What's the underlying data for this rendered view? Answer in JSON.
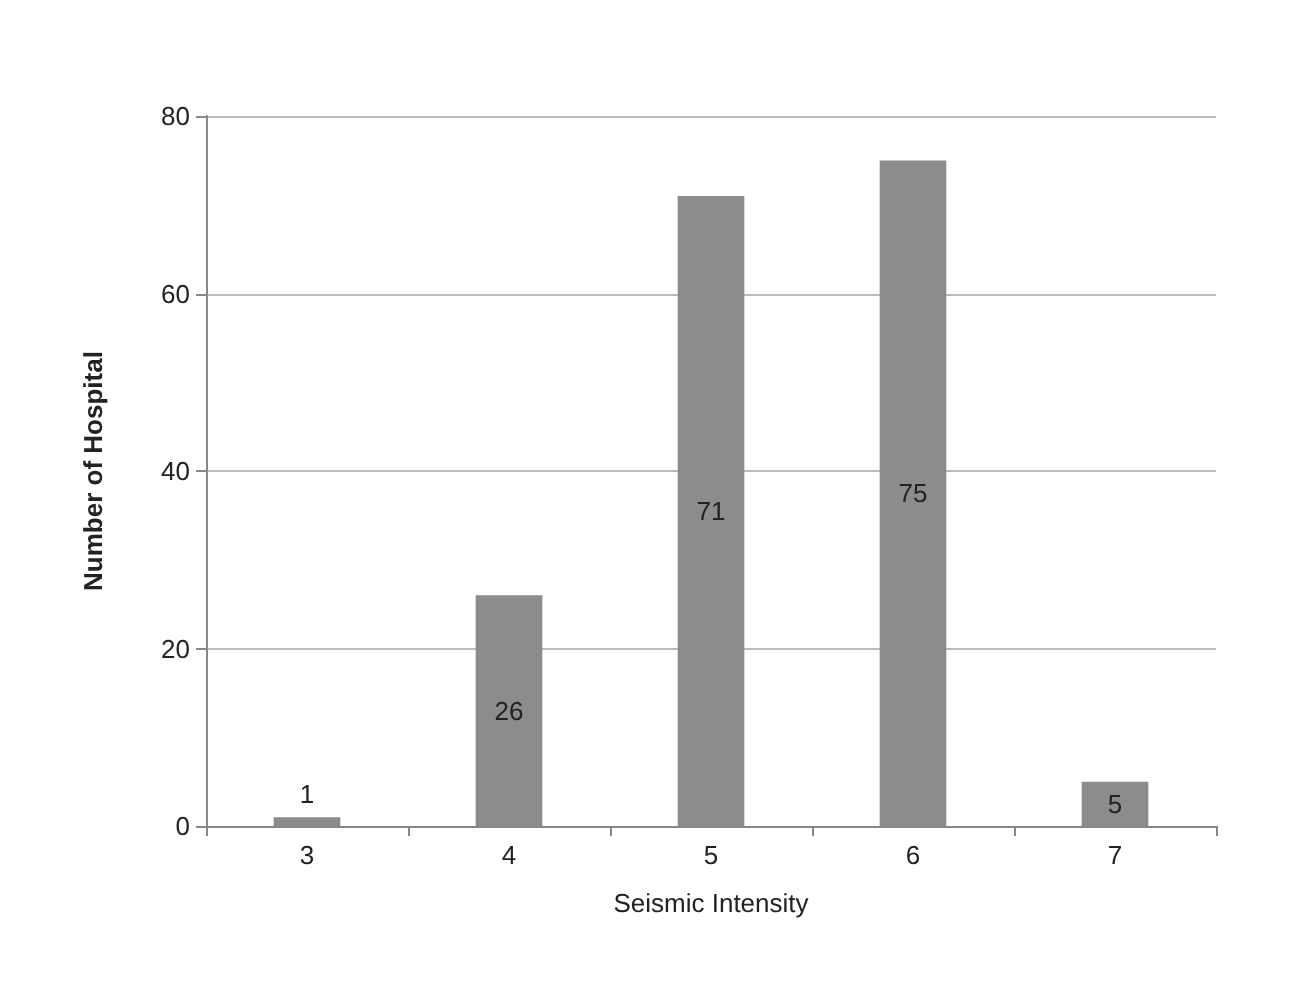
{
  "chart_data": {
    "type": "bar",
    "xlabel": "Seismic Intensity",
    "ylabel": "Number of Hospital",
    "categories": [
      "3",
      "4",
      "5",
      "6",
      "7"
    ],
    "values": [
      1,
      26,
      71,
      75,
      5
    ],
    "color": "#8c8c8c",
    "ylim": [
      0,
      80
    ],
    "yticks": [
      0,
      20,
      40,
      60,
      80
    ],
    "grid": "y",
    "data_labels": true
  }
}
